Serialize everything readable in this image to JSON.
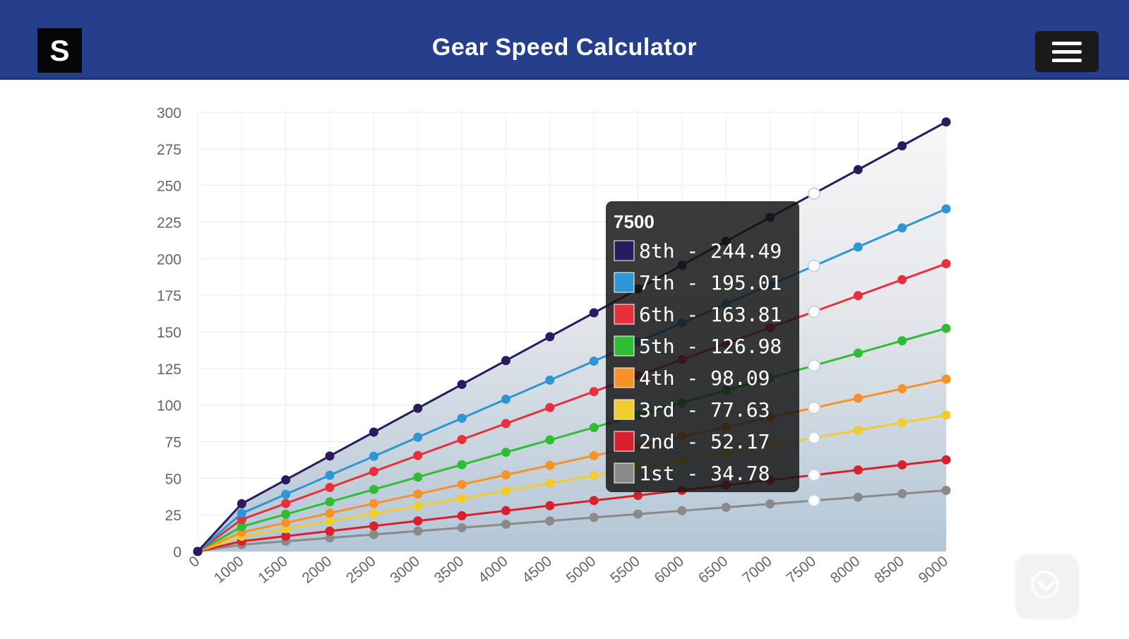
{
  "header": {
    "logo_letter": "S",
    "title": "Gear Speed Calculator",
    "menu_icon": "hamburger-menu-icon",
    "brand_color": "#263f8c"
  },
  "scroll_button": {
    "icon": "chevron-down-circle-icon"
  },
  "chart_data": {
    "type": "line",
    "title": "",
    "xlabel": "",
    "ylabel": "",
    "categories": [
      "0",
      "1000",
      "1500",
      "2000",
      "2500",
      "3000",
      "3500",
      "4000",
      "4500",
      "5000",
      "5500",
      "6000",
      "6500",
      "7000",
      "7500",
      "8000",
      "8500",
      "9000"
    ],
    "rpm": [
      0,
      1000,
      1500,
      2000,
      2500,
      3000,
      3500,
      4000,
      4500,
      5000,
      5500,
      6000,
      6500,
      7000,
      7500,
      8000,
      8500,
      9000
    ],
    "ylim": [
      0,
      300
    ],
    "yticks": [
      "0",
      "25",
      "50",
      "75",
      "100",
      "125",
      "150",
      "175",
      "200",
      "225",
      "250",
      "275",
      "300"
    ],
    "grid": true,
    "area_fill": true,
    "series": [
      {
        "name": "8th",
        "color": "#2a1a5e",
        "speed_per_1000rpm": 32.599
      },
      {
        "name": "7th",
        "color": "#2d96d3",
        "speed_per_1000rpm": 26.001
      },
      {
        "name": "6th",
        "color": "#e8303a",
        "speed_per_1000rpm": 21.841
      },
      {
        "name": "5th",
        "color": "#2fbd35",
        "speed_per_1000rpm": 16.931
      },
      {
        "name": "4th",
        "color": "#f7922b",
        "speed_per_1000rpm": 13.079
      },
      {
        "name": "3rd",
        "color": "#f2cc2f",
        "speed_per_1000rpm": 10.351
      },
      {
        "name": "2nd",
        "color": "#d9202c",
        "speed_per_1000rpm": 6.956
      },
      {
        "name": "1st",
        "color": "#8a8a8a",
        "speed_per_1000rpm": 4.637
      }
    ],
    "tooltip": {
      "title": "7500",
      "index": 14,
      "items": [
        {
          "label": "8th - 244.49",
          "color": "#2a1a5e"
        },
        {
          "label": "7th - 195.01",
          "color": "#2d96d3"
        },
        {
          "label": "6th - 163.81",
          "color": "#e8303a"
        },
        {
          "label": "5th - 126.98",
          "color": "#2fbd35"
        },
        {
          "label": "4th - 98.09",
          "color": "#f7922b"
        },
        {
          "label": "3rd - 77.63",
          "color": "#f2cc2f"
        },
        {
          "label": "2nd - 52.17",
          "color": "#d9202c"
        },
        {
          "label": "1st - 34.78",
          "color": "#8a8a8a"
        }
      ]
    }
  }
}
